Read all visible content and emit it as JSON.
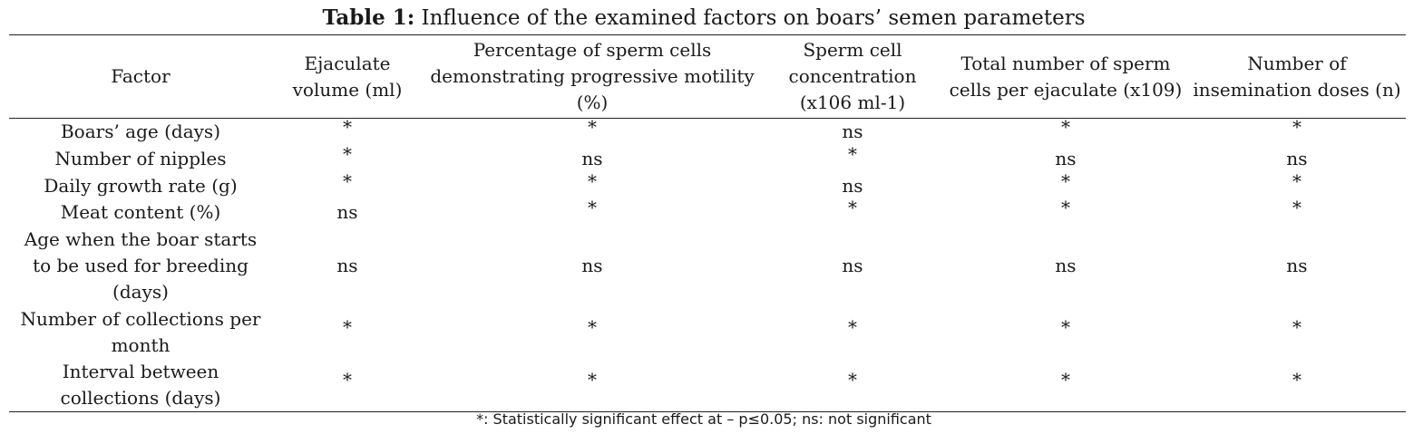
{
  "caption": {
    "label": "Table 1:",
    "text": "Influence of the examined factors on boars’ semen parameters"
  },
  "table": {
    "headers": [
      "Factor",
      "Ejaculate volume (ml)",
      "Percentage of sperm cells demonstrating progressive motility (%)",
      "Sperm cell concentration (x106 ml-1)",
      "Total number of sperm cells per ejaculate (x109)",
      "Number of insemination doses (n)"
    ],
    "rows": [
      {
        "factor": "Boars’ age (days)",
        "values": [
          "*",
          "*",
          "ns",
          "*",
          "*"
        ]
      },
      {
        "factor": "Number of nipples",
        "values": [
          "*",
          "ns",
          "*",
          "ns",
          "ns"
        ]
      },
      {
        "factor": "Daily growth rate (g)",
        "values": [
          "*",
          "*",
          "ns",
          "*",
          "*"
        ]
      },
      {
        "factor": "Meat content (%)",
        "values": [
          "ns",
          "*",
          "*",
          "*",
          "*"
        ]
      },
      {
        "factor": "Age when the boar starts to be used for breeding (days)",
        "values": [
          "ns",
          "ns",
          "ns",
          "ns",
          "ns"
        ]
      },
      {
        "factor": "Number of collections per month",
        "values": [
          "*",
          "*",
          "*",
          "*",
          "*"
        ]
      },
      {
        "factor": "Interval between collections (days)",
        "values": [
          "*",
          "*",
          "*",
          "*",
          "*"
        ]
      }
    ]
  },
  "footnote": "*: Statistically significant effect at – p≤0.05; ns: not significant"
}
